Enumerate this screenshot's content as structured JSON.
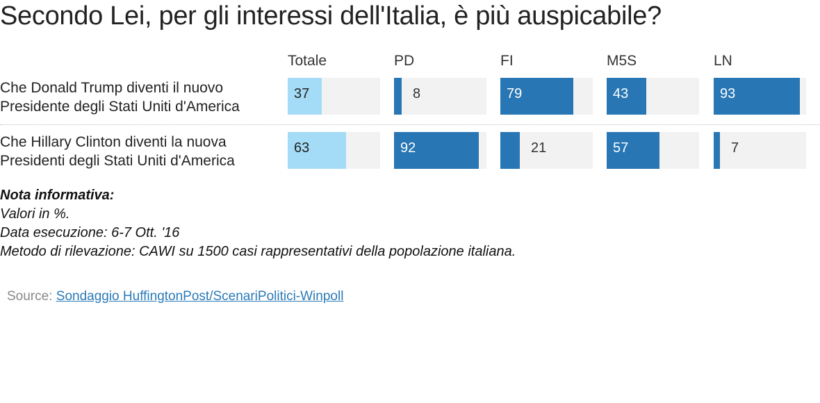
{
  "title": "Secondo Lei, per gli interessi dell'Italia, è più auspicabile?",
  "colors": {
    "total_bar": "#a4dcf7",
    "party_bar": "#2876b4",
    "track": "#f2f2f2"
  },
  "chart_data": {
    "type": "bar",
    "columns": [
      "Totale",
      "PD",
      "FI",
      "M5S",
      "LN"
    ],
    "rows": [
      {
        "label_lines": [
          "Che Donald Trump diventi il nuovo",
          "Presidente degli Stati Uniti d'America"
        ],
        "values": [
          37,
          8,
          79,
          43,
          93
        ]
      },
      {
        "label_lines": [
          "Che Hillary Clinton diventi la nuova",
          "Presidenti degli Stati Uniti d'America"
        ],
        "values": [
          63,
          92,
          21,
          57,
          7
        ]
      }
    ],
    "xlim": [
      0,
      100
    ]
  },
  "notes": {
    "heading": "Nota informativa:",
    "lines": [
      "Valori in %.",
      "Data esecuzione: 6-7 Ott. '16",
      "Metodo di rilevazione: CAWI su 1500 casi rappresentativi della popolazione italiana."
    ]
  },
  "source": {
    "prefix": "Source: ",
    "link_text": "Sondaggio HuffingtonPost/ScenariPolitici-Winpoll"
  }
}
